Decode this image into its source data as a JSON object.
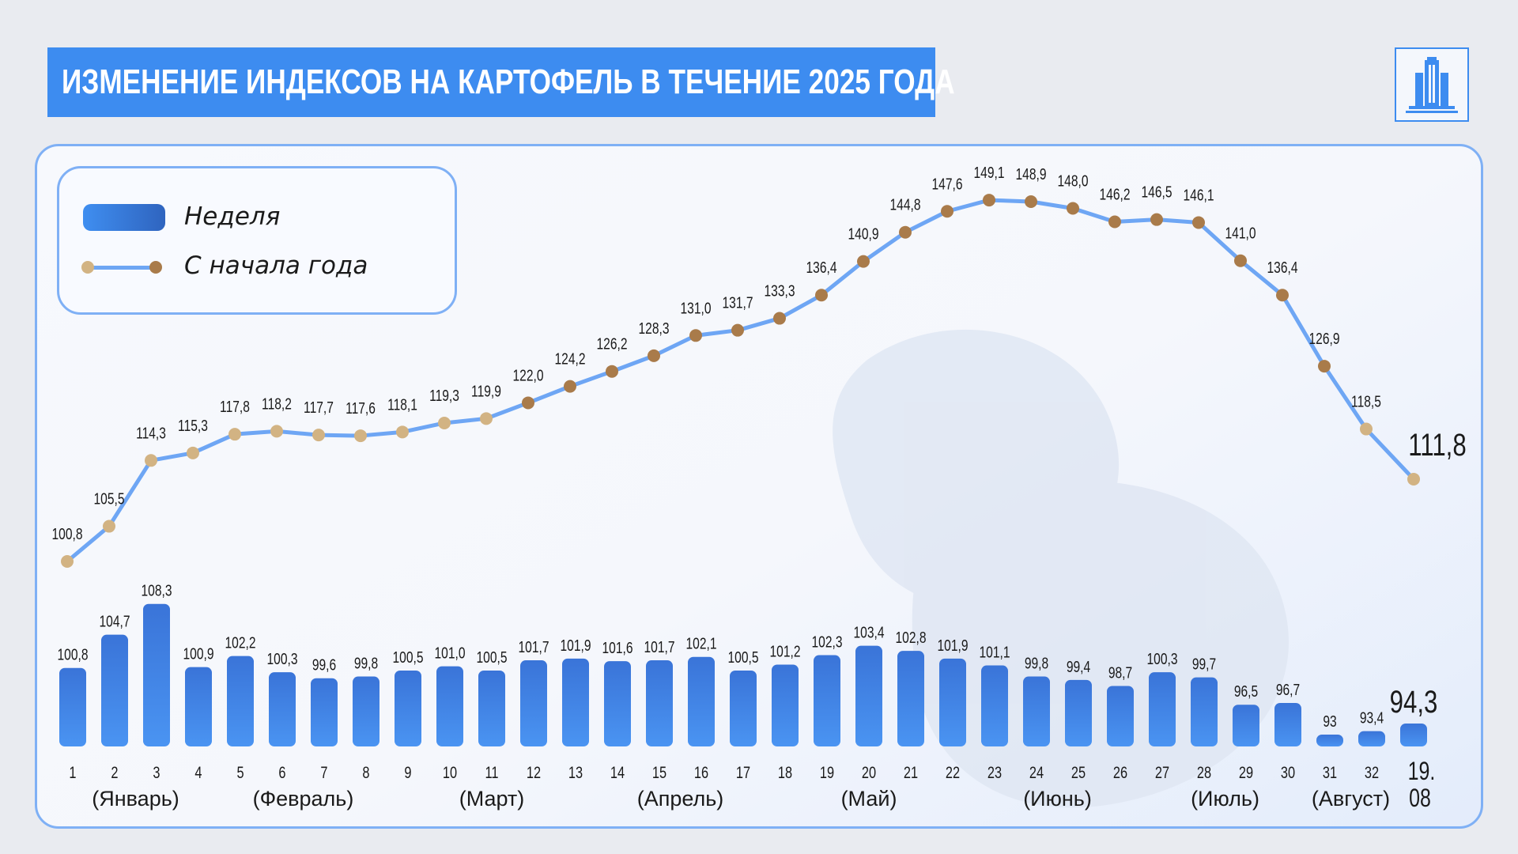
{
  "header": {
    "title": "ИЗМЕНЕНИЕ ИНДЕКСОВ НА КАРТОФЕЛЬ В ТЕЧЕНИЕ 2025 ГОДА"
  },
  "legend": {
    "bar_label": "Неделя",
    "line_label": "С начала года"
  },
  "colors": {
    "accent": "#3d8cf0",
    "bar_top": "#3a74d8",
    "bar_bottom": "#4a94f2",
    "line": "#6ea6f4",
    "dot_light": "#d2b383",
    "dot_dark": "#a97b4a"
  },
  "chart_data": {
    "type": "bar+line",
    "categories": [
      "1",
      "2",
      "3",
      "4",
      "5",
      "6",
      "7",
      "8",
      "9",
      "10",
      "11",
      "12",
      "13",
      "14",
      "15",
      "16",
      "17",
      "18",
      "19",
      "20",
      "21",
      "22",
      "23",
      "24",
      "25",
      "26",
      "27",
      "28",
      "29",
      "30",
      "31",
      "32",
      "19.08"
    ],
    "series": [
      {
        "name": "Неделя",
        "type": "bar",
        "values": [
          100.8,
          104.7,
          108.3,
          100.9,
          102.2,
          100.3,
          99.6,
          99.8,
          100.5,
          101.0,
          100.5,
          101.7,
          101.9,
          101.6,
          101.7,
          102.1,
          100.5,
          101.2,
          102.3,
          103.4,
          102.8,
          101.9,
          101.1,
          99.8,
          99.4,
          98.7,
          100.3,
          99.7,
          96.5,
          96.7,
          93,
          93.4,
          94.3
        ],
        "labels": [
          "100,8",
          "104,7",
          "108,3",
          "100,9",
          "102,2",
          "100,3",
          "99,6",
          "99,8",
          "100,5",
          "101,0",
          "100,5",
          "101,7",
          "101,9",
          "101,6",
          "101,7",
          "102,1",
          "100,5",
          "101,2",
          "102,3",
          "103,4",
          "102,8",
          "101,9",
          "101,1",
          "99,8",
          "99,4",
          "98,7",
          "100,3",
          "99,7",
          "96,5",
          "96,7",
          "93",
          "93,4",
          "94,3"
        ]
      },
      {
        "name": "С начала года",
        "type": "line",
        "values": [
          100.8,
          105.5,
          114.3,
          115.3,
          117.8,
          118.2,
          117.7,
          117.6,
          118.1,
          119.3,
          119.9,
          122.0,
          124.2,
          126.2,
          128.3,
          131.0,
          131.7,
          133.3,
          136.4,
          140.9,
          144.8,
          147.6,
          149.1,
          148.9,
          148.0,
          146.2,
          146.5,
          146.1,
          141.0,
          136.4,
          126.9,
          118.5,
          111.8
        ],
        "labels": [
          "100,8",
          "105,5",
          "114,3",
          "115,3",
          "117,8",
          "118,2",
          "117,7",
          "117,6",
          "118,1",
          "119,3",
          "119,9",
          "122,0",
          "124,2",
          "126,2",
          "128,3",
          "131,0",
          "131,7",
          "133,3",
          "136,4",
          "140,9",
          "144,8",
          "147,6",
          "149,1",
          "148,9",
          "148,0",
          "146,2",
          "146,5",
          "146,1",
          "141,0",
          "136,4",
          "126,9",
          "118,5",
          "111,8"
        ]
      }
    ],
    "months": [
      {
        "label": "(Январь)",
        "from": 1,
        "to": 4
      },
      {
        "label": "(Февраль)",
        "from": 5,
        "to": 8
      },
      {
        "label": "(Март)",
        "from": 9,
        "to": 13
      },
      {
        "label": "(Апрель)",
        "from": 14,
        "to": 17
      },
      {
        "label": "(Май)",
        "from": 18,
        "to": 22
      },
      {
        "label": "(Июнь)",
        "from": 23,
        "to": 26
      },
      {
        "label": "(Июль)",
        "from": 27,
        "to": 30
      },
      {
        "label": "(Август)",
        "from": 31,
        "to": 32
      }
    ],
    "title": "ИЗМЕНЕНИЕ ИНДЕКСОВ НА КАРТОФЕЛЬ В ТЕЧЕНИЕ 2025 ГОДА",
    "legend_position": "top-left",
    "grid": false
  }
}
